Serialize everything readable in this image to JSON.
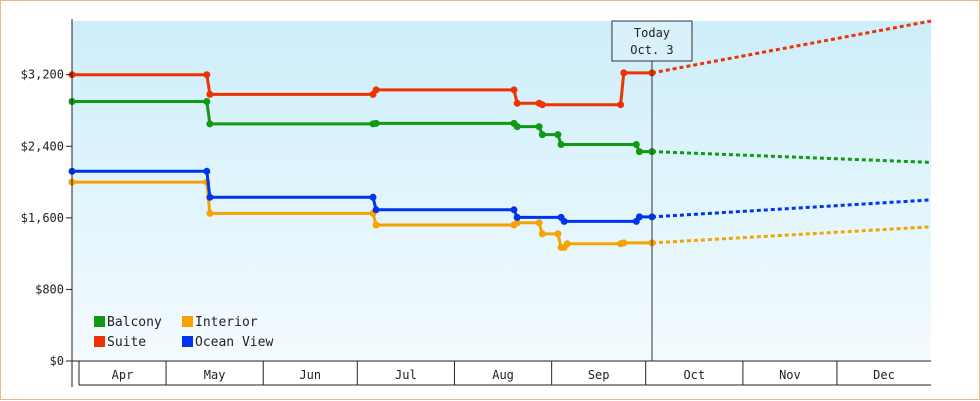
{
  "chart_data": {
    "type": "line",
    "title": "",
    "xlabel": "",
    "ylabel": "",
    "currency": "$",
    "ylim": [
      0,
      3800
    ],
    "yticks": [
      0,
      800,
      1600,
      2400,
      3200
    ],
    "ytick_labels": [
      "$0",
      "$800",
      "$1,600",
      "$2,400",
      "$3,200"
    ],
    "xlim": [
      "2019-04-01",
      "2019-12-31"
    ],
    "months": [
      {
        "label": "Apr",
        "start": "2019-04-01",
        "end": "2019-05-01"
      },
      {
        "label": "May",
        "start": "2019-05-01",
        "end": "2019-06-01"
      },
      {
        "label": "Jun",
        "start": "2019-06-01",
        "end": "2019-07-01"
      },
      {
        "label": "Jul",
        "start": "2019-07-01",
        "end": "2019-08-01"
      },
      {
        "label": "Aug",
        "start": "2019-08-01",
        "end": "2019-09-01"
      },
      {
        "label": "Sep",
        "start": "2019-09-01",
        "end": "2019-10-01"
      },
      {
        "label": "Oct",
        "start": "2019-10-01",
        "end": "2019-11-01"
      },
      {
        "label": "Nov",
        "start": "2019-11-01",
        "end": "2019-12-01"
      },
      {
        "label": "Dec",
        "start": "2019-12-01",
        "end": "2019-12-31"
      }
    ],
    "today": {
      "date": "2019-10-03",
      "label_line1": "Today",
      "label_line2": "Oct. 3"
    },
    "legend_placement": "bottom-left",
    "grid": false,
    "series": [
      {
        "name": "Balcony",
        "color": "#119911",
        "points": [
          {
            "x": "2019-04-01",
            "y": 2900
          },
          {
            "x": "2019-05-14",
            "y": 2900
          },
          {
            "x": "2019-05-15",
            "y": 2650
          },
          {
            "x": "2019-07-06",
            "y": 2650
          },
          {
            "x": "2019-07-07",
            "y": 2655
          },
          {
            "x": "2019-08-20",
            "y": 2655
          },
          {
            "x": "2019-08-21",
            "y": 2620
          },
          {
            "x": "2019-08-28",
            "y": 2620
          },
          {
            "x": "2019-08-29",
            "y": 2530
          },
          {
            "x": "2019-09-03",
            "y": 2530
          },
          {
            "x": "2019-09-04",
            "y": 2420
          },
          {
            "x": "2019-09-28",
            "y": 2420
          },
          {
            "x": "2019-09-29",
            "y": 2340
          },
          {
            "x": "2019-10-03",
            "y": 2340
          }
        ],
        "forecast": [
          {
            "x": "2019-10-03",
            "y": 2340
          },
          {
            "x": "2019-12-31",
            "y": 2220
          }
        ]
      },
      {
        "name": "Interior",
        "color": "#f5a300",
        "points": [
          {
            "x": "2019-04-01",
            "y": 2000
          },
          {
            "x": "2019-05-14",
            "y": 2000
          },
          {
            "x": "2019-05-15",
            "y": 1650
          },
          {
            "x": "2019-07-06",
            "y": 1650
          },
          {
            "x": "2019-07-07",
            "y": 1520
          },
          {
            "x": "2019-08-20",
            "y": 1520
          },
          {
            "x": "2019-08-21",
            "y": 1545
          },
          {
            "x": "2019-08-28",
            "y": 1545
          },
          {
            "x": "2019-08-29",
            "y": 1420
          },
          {
            "x": "2019-09-03",
            "y": 1420
          },
          {
            "x": "2019-09-04",
            "y": 1270
          },
          {
            "x": "2019-09-05",
            "y": 1270
          },
          {
            "x": "2019-09-06",
            "y": 1310
          },
          {
            "x": "2019-09-23",
            "y": 1310
          },
          {
            "x": "2019-09-24",
            "y": 1320
          },
          {
            "x": "2019-10-03",
            "y": 1320
          }
        ],
        "forecast": [
          {
            "x": "2019-10-03",
            "y": 1320
          },
          {
            "x": "2019-12-31",
            "y": 1500
          }
        ]
      },
      {
        "name": "Suite",
        "color": "#ee3300",
        "points": [
          {
            "x": "2019-04-01",
            "y": 3200
          },
          {
            "x": "2019-05-14",
            "y": 3200
          },
          {
            "x": "2019-05-15",
            "y": 2980
          },
          {
            "x": "2019-07-06",
            "y": 2980
          },
          {
            "x": "2019-07-07",
            "y": 3030
          },
          {
            "x": "2019-08-20",
            "y": 3030
          },
          {
            "x": "2019-08-21",
            "y": 2880
          },
          {
            "x": "2019-08-28",
            "y": 2880
          },
          {
            "x": "2019-08-29",
            "y": 2865
          },
          {
            "x": "2019-09-23",
            "y": 2865
          },
          {
            "x": "2019-09-24",
            "y": 3220
          },
          {
            "x": "2019-10-03",
            "y": 3220
          }
        ],
        "forecast": [
          {
            "x": "2019-10-03",
            "y": 3220
          },
          {
            "x": "2019-12-31",
            "y": 3800
          }
        ]
      },
      {
        "name": "Ocean View",
        "color": "#0033ee",
        "points": [
          {
            "x": "2019-04-01",
            "y": 2120
          },
          {
            "x": "2019-05-14",
            "y": 2120
          },
          {
            "x": "2019-05-15",
            "y": 1830
          },
          {
            "x": "2019-07-06",
            "y": 1830
          },
          {
            "x": "2019-07-07",
            "y": 1690
          },
          {
            "x": "2019-08-20",
            "y": 1690
          },
          {
            "x": "2019-08-21",
            "y": 1605
          },
          {
            "x": "2019-09-04",
            "y": 1605
          },
          {
            "x": "2019-09-05",
            "y": 1560
          },
          {
            "x": "2019-09-28",
            "y": 1560
          },
          {
            "x": "2019-09-29",
            "y": 1610
          },
          {
            "x": "2019-10-03",
            "y": 1610
          }
        ],
        "forecast": [
          {
            "x": "2019-10-03",
            "y": 1610
          },
          {
            "x": "2019-12-31",
            "y": 1800
          }
        ]
      }
    ]
  }
}
